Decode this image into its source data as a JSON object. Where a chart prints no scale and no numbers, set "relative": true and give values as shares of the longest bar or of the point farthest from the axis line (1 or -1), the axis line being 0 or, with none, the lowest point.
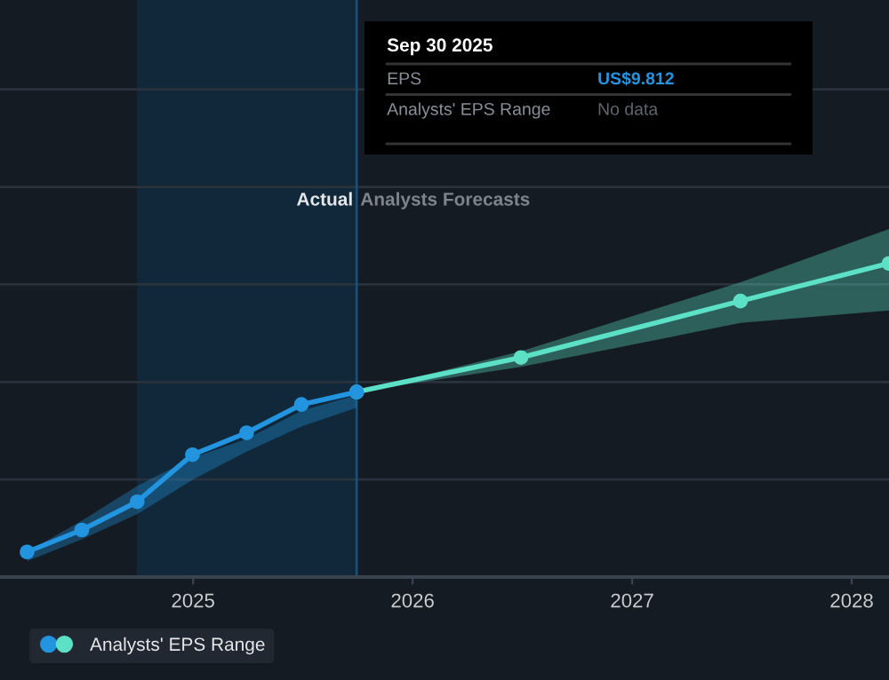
{
  "chart_data": {
    "type": "line",
    "relative": true,
    "series": [
      {
        "color": "#2394df",
        "x": [
          "2024-03-31",
          "2024-06-30",
          "2024-09-30",
          "2024-12-31",
          "2025-03-31",
          "2025-06-30",
          "2025-09-30"
        ],
        "values": [
          0.08,
          0.15,
          0.24,
          0.39,
          0.46,
          0.55,
          0.59
        ],
        "lower": [
          0.05,
          0.12,
          0.2,
          0.31,
          0.4,
          0.48,
          0.54
        ],
        "upper": [
          0.08,
          0.18,
          0.29,
          0.38,
          0.44,
          0.53,
          0.58
        ]
      },
      {
        "name": "Analysts' EPS Range",
        "color": "#5ce0c6",
        "x": [
          "2025-09-30",
          "2026-06-30",
          "2027-06-30",
          "2028-03-03"
        ],
        "values": [
          0.59,
          0.7,
          0.88,
          1.0
        ],
        "lower": [
          0.59,
          0.67,
          0.81,
          0.85
        ],
        "upper": [
          0.59,
          0.72,
          0.94,
          1.11
        ]
      }
    ],
    "xlim": [
      "2024-02-15",
      "2028-03-03"
    ],
    "xticks": [
      {
        "value": "2025-01-01",
        "label": "2025"
      },
      {
        "value": "2026-01-01",
        "label": "2026"
      },
      {
        "value": "2027-01-01",
        "label": "2027"
      },
      {
        "value": "2028-01-01",
        "label": "2028"
      }
    ],
    "grid": "y",
    "marker": "circle",
    "legend": "bottom left",
    "bands": [
      {
        "axis": "x",
        "from": "2024-09-30",
        "to": "2025-09-30",
        "color": "#10283a"
      }
    ],
    "ref_lines": [
      {
        "axis": "x",
        "value": "2025-09-30",
        "label": "Actual",
        "color": "#1d4f73"
      }
    ],
    "annotations": [
      "Analysts Forecasts",
      "Sep 30 2025",
      "EPS",
      "US$9.812",
      "Analysts' EPS Range",
      "No data"
    ]
  }
}
